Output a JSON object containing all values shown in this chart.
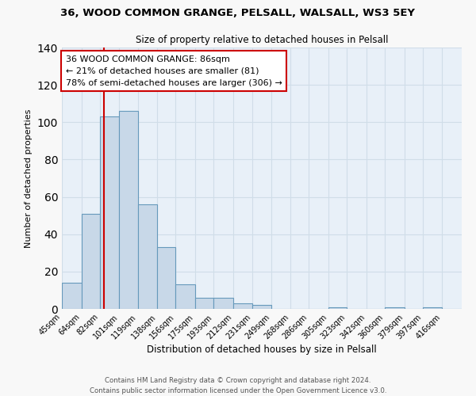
{
  "title": "36, WOOD COMMON GRANGE, PELSALL, WALSALL, WS3 5EY",
  "subtitle": "Size of property relative to detached houses in Pelsall",
  "xlabel": "Distribution of detached houses by size in Pelsall",
  "ylabel": "Number of detached properties",
  "bin_labels": [
    "45sqm",
    "64sqm",
    "82sqm",
    "101sqm",
    "119sqm",
    "138sqm",
    "156sqm",
    "175sqm",
    "193sqm",
    "212sqm",
    "231sqm",
    "249sqm",
    "268sqm",
    "286sqm",
    "305sqm",
    "323sqm",
    "342sqm",
    "360sqm",
    "379sqm",
    "397sqm",
    "416sqm"
  ],
  "bar_values": [
    14,
    51,
    103,
    106,
    56,
    33,
    13,
    6,
    6,
    3,
    2,
    0,
    0,
    0,
    1,
    0,
    0,
    1,
    0,
    1,
    0
  ],
  "bar_color": "#c8d8e8",
  "bar_edge_color": "#6699bb",
  "bar_edge_width": 0.8,
  "vline_x": 86,
  "vline_color": "#cc0000",
  "ylim": [
    0,
    140
  ],
  "yticks": [
    0,
    20,
    40,
    60,
    80,
    100,
    120,
    140
  ],
  "annotation_text": "36 WOOD COMMON GRANGE: 86sqm\n← 21% of detached houses are smaller (81)\n78% of semi-detached houses are larger (306) →",
  "annotation_box_color": "#ffffff",
  "annotation_box_edge_color": "#cc0000",
  "footer_line1": "Contains HM Land Registry data © Crown copyright and database right 2024.",
  "footer_line2": "Contains public sector information licensed under the Open Government Licence v3.0.",
  "grid_color": "#d0dde8",
  "background_color": "#e8f0f8",
  "fig_background_color": "#f8f8f8",
  "bin_edges": [
    45,
    64,
    82,
    101,
    119,
    138,
    156,
    175,
    193,
    212,
    231,
    249,
    268,
    286,
    305,
    323,
    342,
    360,
    379,
    397,
    416,
    435
  ]
}
